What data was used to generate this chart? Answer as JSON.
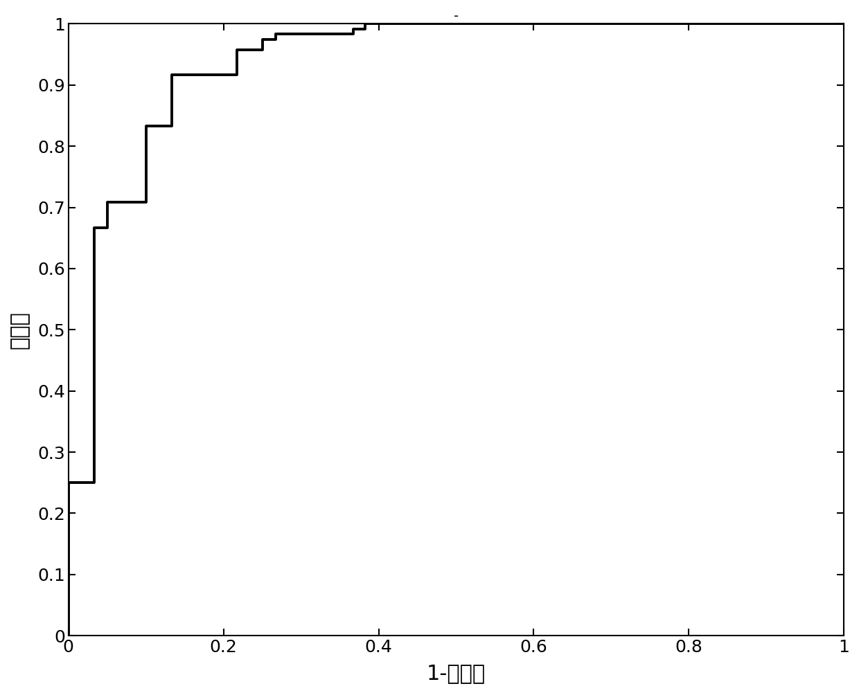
{
  "title": "-",
  "xlabel": "1-特异性",
  "ylabel": "灵敏度",
  "xlim": [
    0,
    1
  ],
  "ylim": [
    0,
    1
  ],
  "xticks": [
    0,
    0.2,
    0.4,
    0.6,
    0.8,
    1.0
  ],
  "yticks": [
    0,
    0.1,
    0.2,
    0.3,
    0.4,
    0.5,
    0.6,
    0.7,
    0.8,
    0.9,
    1.0
  ],
  "line_color": "#000000",
  "line_width": 2.8,
  "background_color": "#ffffff",
  "roc_x": [
    0.0,
    0.0,
    0.033,
    0.033,
    0.05,
    0.05,
    0.1,
    0.1,
    0.133,
    0.133,
    0.217,
    0.217,
    0.25,
    0.25,
    0.267,
    0.267,
    0.367,
    0.367,
    0.383,
    0.383,
    0.867,
    0.867,
    1.0
  ],
  "roc_y": [
    0.0,
    0.25,
    0.25,
    0.667,
    0.667,
    0.708,
    0.708,
    0.833,
    0.833,
    0.917,
    0.917,
    0.958,
    0.958,
    0.975,
    0.975,
    0.983,
    0.983,
    0.992,
    0.992,
    1.0,
    1.0,
    1.0,
    1.0
  ],
  "xlabel_fontsize": 22,
  "ylabel_fontsize": 22,
  "tick_fontsize": 18,
  "title_fontsize": 14
}
